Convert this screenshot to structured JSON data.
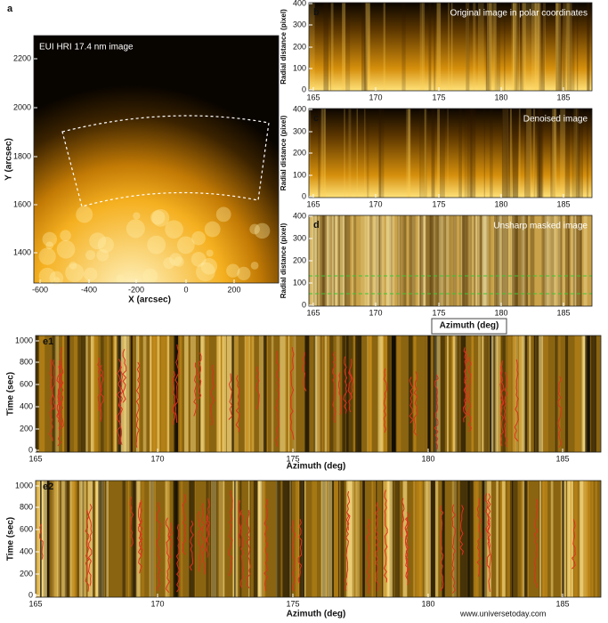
{
  "panel_a": {
    "label": "a",
    "title": "EUI HRI 17.4 nm image",
    "xlabel": "X (arcsec)",
    "ylabel": "Y (arcsec)",
    "xticks": [
      "-600",
      "-400",
      "-200",
      "0",
      "200"
    ],
    "yticks": [
      "2200",
      "2000",
      "1800",
      "1600",
      "1400"
    ]
  },
  "panel_b": {
    "label": "b",
    "title": "Original image in polar coordinates",
    "ylabel": "Radial distance (pixel)",
    "xticks": [
      "165",
      "170",
      "175",
      "180",
      "185"
    ],
    "yticks": [
      "400",
      "300",
      "200",
      "100",
      "0"
    ]
  },
  "panel_c": {
    "label": "c",
    "title": "Denoised image",
    "ylabel": "Radial distance (pixel)",
    "xticks": [
      "165",
      "170",
      "175",
      "180",
      "185"
    ],
    "yticks": [
      "400",
      "300",
      "200",
      "100",
      "0"
    ]
  },
  "panel_d": {
    "label": "d",
    "title": "Unsharp masked image",
    "ylabel": "Radial distance (pixel)",
    "xlabel": "Azimuth (deg)",
    "xticks": [
      "165",
      "170",
      "175",
      "180",
      "185"
    ],
    "yticks": [
      "400",
      "300",
      "200",
      "100",
      "0"
    ]
  },
  "panel_e1": {
    "label": "e1",
    "xlabel": "Azimuth (deg)",
    "ylabel": "Time (sec)",
    "xticks": [
      "165",
      "170",
      "175",
      "180",
      "185"
    ],
    "yticks": [
      "1000",
      "800",
      "600",
      "400",
      "200",
      "0"
    ]
  },
  "panel_e2": {
    "label": "e2",
    "xlabel": "Azimuth (deg)",
    "ylabel": "Time (sec)",
    "xticks": [
      "165",
      "170",
      "175",
      "180",
      "185"
    ],
    "yticks": [
      "1000",
      "800",
      "600",
      "400",
      "200",
      "0"
    ]
  },
  "credit": "www.universetoday.com"
}
